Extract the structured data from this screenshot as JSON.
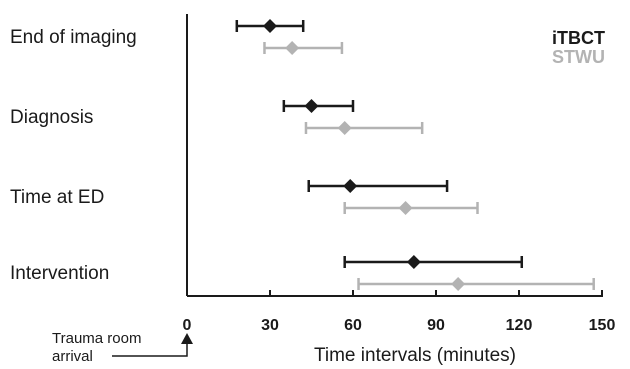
{
  "chart_data": {
    "type": "forest",
    "title": "",
    "xlabel": "Time intervals (minutes)",
    "ylabel": "",
    "xlim": [
      0,
      150
    ],
    "xticks": [
      0,
      30,
      60,
      90,
      120,
      150
    ],
    "grid": false,
    "legend": {
      "placement": "top-right"
    },
    "categories": [
      "End of imaging",
      "Diagnosis",
      "Time at ED",
      "Intervention"
    ],
    "series": [
      {
        "name": "iTBCT",
        "color": "#1a1a1a",
        "points": [
          {
            "category": "End of imaging",
            "median": 30,
            "low": 18,
            "high": 42
          },
          {
            "category": "Diagnosis",
            "median": 45,
            "low": 35,
            "high": 60
          },
          {
            "category": "Time at ED",
            "median": 59,
            "low": 44,
            "high": 94
          },
          {
            "category": "Intervention",
            "median": 82,
            "low": 57,
            "high": 121
          }
        ]
      },
      {
        "name": "STWU",
        "color": "#b3b3b3",
        "points": [
          {
            "category": "End of imaging",
            "median": 38,
            "low": 28,
            "high": 56
          },
          {
            "category": "Diagnosis",
            "median": 57,
            "low": 43,
            "high": 85
          },
          {
            "category": "Time at ED",
            "median": 79,
            "low": 57,
            "high": 105
          },
          {
            "category": "Intervention",
            "median": 98,
            "low": 62,
            "high": 147
          }
        ]
      }
    ],
    "annotation": {
      "line1": "Trauma room",
      "line2": "arrival"
    }
  }
}
